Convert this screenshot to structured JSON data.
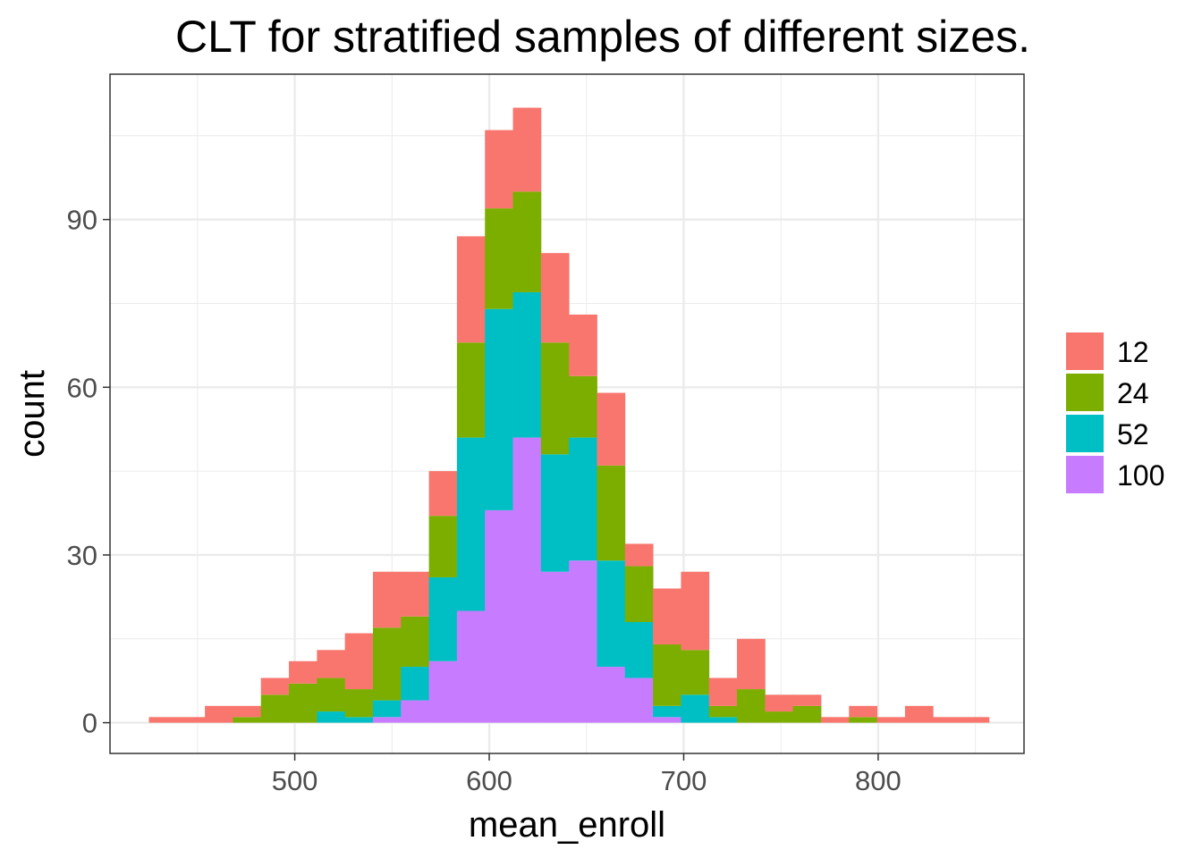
{
  "chart_data": {
    "type": "bar",
    "stacked": true,
    "title": "CLT for stratified samples of different sizes.",
    "xlabel": "mean_enroll",
    "ylabel": "count",
    "xlim": [
      405,
      875
    ],
    "ylim": [
      -5.5,
      116
    ],
    "xticks": [
      500,
      600,
      700,
      800
    ],
    "yticks": [
      0,
      30,
      60,
      90
    ],
    "grid": true,
    "legend_position": "right",
    "bin_width": 14.4,
    "bin_centers": [
      432.2,
      446.6,
      461.0,
      475.4,
      489.8,
      504.2,
      518.6,
      533.0,
      547.4,
      561.8,
      576.2,
      590.6,
      605.0,
      619.4,
      633.8,
      648.2,
      662.6,
      677.0,
      691.4,
      705.8,
      720.2,
      734.6,
      749.0,
      763.4,
      777.8,
      792.2,
      806.6,
      821.0,
      835.4,
      849.8
    ],
    "series": [
      {
        "name": "12",
        "color": "#F8766D",
        "values": [
          1,
          1,
          3,
          2,
          3,
          4,
          5,
          10,
          10,
          8,
          8,
          19,
          14,
          15,
          16,
          11,
          13,
          4,
          10,
          14,
          5,
          9,
          3,
          2,
          1,
          2,
          1,
          3,
          1,
          1
        ]
      },
      {
        "name": "24",
        "color": "#7CAE00",
        "values": [
          0,
          0,
          0,
          1,
          5,
          7,
          6,
          5,
          13,
          9,
          11,
          17,
          18,
          18,
          20,
          11,
          17,
          10,
          11,
          8,
          2,
          6,
          2,
          3,
          0,
          1,
          0,
          0,
          0,
          0
        ]
      },
      {
        "name": "52",
        "color": "#00BFC4",
        "values": [
          0,
          0,
          0,
          0,
          0,
          0,
          2,
          1,
          3,
          6,
          15,
          31,
          36,
          26,
          21,
          22,
          19,
          10,
          2,
          5,
          1,
          0,
          0,
          0,
          0,
          0,
          0,
          0,
          0,
          0
        ]
      },
      {
        "name": "100",
        "color": "#C77CFF",
        "values": [
          0,
          0,
          0,
          0,
          0,
          0,
          0,
          0,
          1,
          4,
          11,
          20,
          38,
          51,
          27,
          29,
          10,
          8,
          1,
          0,
          0,
          0,
          0,
          0,
          0,
          0,
          0,
          0,
          0,
          0
        ]
      }
    ]
  }
}
